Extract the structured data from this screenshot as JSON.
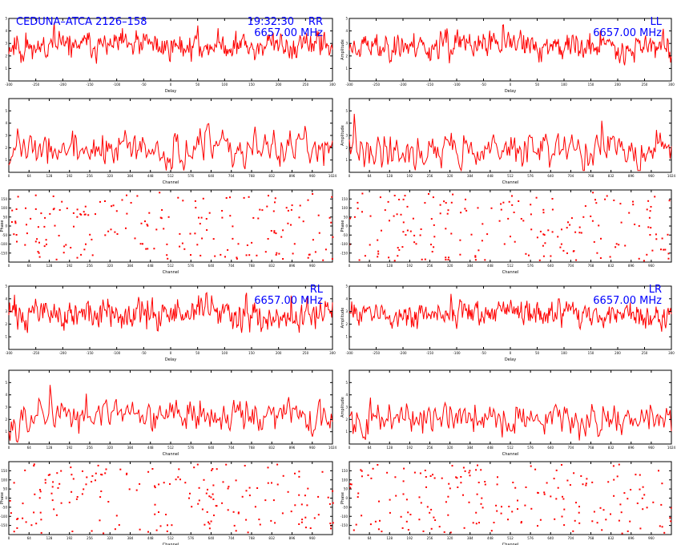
{
  "header": {
    "source_label": "CEDUNA–ATCA 2126–158",
    "time_label": "19:32:30",
    "colors": {
      "annotation": "#0000ff",
      "trace": "#ff0000",
      "frame": "#000000",
      "background": "#ffffff"
    }
  },
  "chart_data": [
    {
      "id": "rr-delay",
      "type": "line",
      "stokes": "RR",
      "freq_label": "6657.00 MHz",
      "show_time": true,
      "show_source": true,
      "xlabel": "Delay",
      "ylabel": "",
      "xlim": [
        -300,
        300
      ],
      "x_ticks": [
        -300,
        -250,
        -200,
        -150,
        -100,
        -50,
        0,
        50,
        100,
        150,
        200,
        250,
        300
      ],
      "ylim": [
        0,
        5
      ],
      "y_ticks": [
        1,
        2,
        3,
        4,
        5
      ],
      "n_points": 400,
      "level": 2.8,
      "spread": 1.2,
      "seed": 11
    },
    {
      "id": "ll-delay",
      "type": "line",
      "stokes": "LL",
      "freq_label": "6657.00 MHz",
      "xlabel": "Delay",
      "ylabel": "Amplitude",
      "xlim": [
        -300,
        300
      ],
      "x_ticks": [
        -300,
        -250,
        -200,
        -150,
        -100,
        -50,
        0,
        50,
        100,
        150,
        200,
        250,
        300
      ],
      "ylim": [
        0,
        5
      ],
      "y_ticks": [
        1,
        2,
        3,
        4,
        5
      ],
      "n_points": 400,
      "level": 2.8,
      "spread": 1.2,
      "seed": 23
    },
    {
      "id": "rr-channel",
      "type": "line",
      "xlabel": "Channel",
      "ylabel": "",
      "xlim": [
        0,
        1024
      ],
      "x_ticks": [
        0,
        64,
        128,
        192,
        256,
        320,
        384,
        448,
        512,
        576,
        640,
        704,
        768,
        832,
        896,
        960,
        1024
      ],
      "ylim": [
        0,
        6
      ],
      "y_ticks": [
        1,
        2,
        3,
        4,
        5
      ],
      "n_points": 260,
      "level": 1.8,
      "spread": 1.6,
      "seed": 37
    },
    {
      "id": "ll-channel",
      "type": "line",
      "xlabel": "Channel",
      "ylabel": "Amplitude",
      "xlim": [
        0,
        1024
      ],
      "x_ticks": [
        0,
        64,
        128,
        192,
        256,
        320,
        384,
        448,
        512,
        576,
        640,
        704,
        768,
        832,
        896,
        960,
        1024
      ],
      "ylim": [
        0,
        6
      ],
      "y_ticks": [
        1,
        2,
        3,
        4,
        5
      ],
      "n_points": 260,
      "level": 1.8,
      "spread": 1.6,
      "seed": 41
    },
    {
      "id": "rr-phase",
      "type": "scatter",
      "xlabel": "Channel",
      "ylabel": "Phase",
      "xlim": [
        0,
        1024
      ],
      "x_ticks": [
        0,
        64,
        128,
        192,
        256,
        320,
        384,
        448,
        512,
        576,
        640,
        704,
        768,
        832,
        896,
        960
      ],
      "ylim": [
        -200,
        200
      ],
      "y_ticks": [
        -150,
        -100,
        -50,
        0,
        50,
        100,
        150
      ],
      "n_points": 190,
      "seed": 53
    },
    {
      "id": "ll-phase",
      "type": "scatter",
      "xlabel": "Channel",
      "ylabel": "Phase",
      "xlim": [
        0,
        1024
      ],
      "x_ticks": [
        0,
        64,
        128,
        192,
        256,
        320,
        384,
        448,
        512,
        576,
        640,
        704,
        768,
        832,
        896,
        960
      ],
      "ylim": [
        -200,
        200
      ],
      "y_ticks": [
        -150,
        -100,
        -50,
        0,
        50,
        100,
        150
      ],
      "n_points": 190,
      "seed": 67
    },
    {
      "id": "rl-delay",
      "type": "line",
      "stokes": "RL",
      "freq_label": "6657.00 MHz",
      "xlabel": "Delay",
      "ylabel": "",
      "xlim": [
        -300,
        300
      ],
      "x_ticks": [
        -300,
        -250,
        -200,
        -150,
        -100,
        -50,
        0,
        50,
        100,
        150,
        200,
        250,
        300
      ],
      "ylim": [
        0,
        5
      ],
      "y_ticks": [
        1,
        2,
        3,
        4,
        5
      ],
      "n_points": 400,
      "level": 2.8,
      "spread": 1.3,
      "seed": 71
    },
    {
      "id": "lr-delay",
      "type": "line",
      "stokes": "LR",
      "freq_label": "6657.00 MHz",
      "xlabel": "Delay",
      "ylabel": "Amplitude",
      "xlim": [
        -300,
        300
      ],
      "x_ticks": [
        -300,
        -250,
        -200,
        -150,
        -100,
        -50,
        0,
        50,
        100,
        150,
        200,
        250,
        300
      ],
      "ylim": [
        0,
        5
      ],
      "y_ticks": [
        1,
        2,
        3,
        4,
        5
      ],
      "n_points": 400,
      "level": 2.8,
      "spread": 1.1,
      "seed": 83
    },
    {
      "id": "rl-channel",
      "type": "line",
      "xlabel": "Channel",
      "ylabel": "",
      "xlim": [
        0,
        1024
      ],
      "x_ticks": [
        0,
        64,
        128,
        192,
        256,
        320,
        384,
        448,
        512,
        576,
        640,
        704,
        768,
        832,
        896,
        960,
        1024
      ],
      "ylim": [
        0,
        6
      ],
      "y_ticks": [
        1,
        2,
        3,
        4,
        5
      ],
      "n_points": 260,
      "level": 2.2,
      "spread": 1.5,
      "seed": 97
    },
    {
      "id": "lr-channel",
      "type": "line",
      "xlabel": "Channel",
      "ylabel": "Amplitude",
      "xlim": [
        0,
        1024
      ],
      "x_ticks": [
        0,
        64,
        128,
        192,
        256,
        320,
        384,
        448,
        512,
        576,
        640,
        704,
        768,
        832,
        896,
        960,
        1024
      ],
      "ylim": [
        0,
        6
      ],
      "y_ticks": [
        1,
        2,
        3,
        4,
        5
      ],
      "n_points": 260,
      "level": 2.0,
      "spread": 1.5,
      "seed": 101
    },
    {
      "id": "rl-phase",
      "type": "scatter",
      "xlabel": "Channel",
      "ylabel": "Phase",
      "xlim": [
        0,
        1024
      ],
      "x_ticks": [
        0,
        64,
        128,
        192,
        256,
        320,
        384,
        448,
        512,
        576,
        640,
        704,
        768,
        832,
        896,
        960
      ],
      "ylim": [
        -200,
        200
      ],
      "y_ticks": [
        -150,
        -100,
        -50,
        0,
        50,
        100,
        150
      ],
      "n_points": 190,
      "seed": 113
    },
    {
      "id": "lr-phase",
      "type": "scatter",
      "xlabel": "Channel",
      "ylabel": "Phase",
      "xlim": [
        0,
        1024
      ],
      "x_ticks": [
        0,
        64,
        128,
        192,
        256,
        320,
        384,
        448,
        512,
        576,
        640,
        704,
        768,
        832,
        896,
        960
      ],
      "ylim": [
        -200,
        200
      ],
      "y_ticks": [
        -150,
        -100,
        -50,
        0,
        50,
        100,
        150
      ],
      "n_points": 190,
      "seed": 127
    }
  ]
}
